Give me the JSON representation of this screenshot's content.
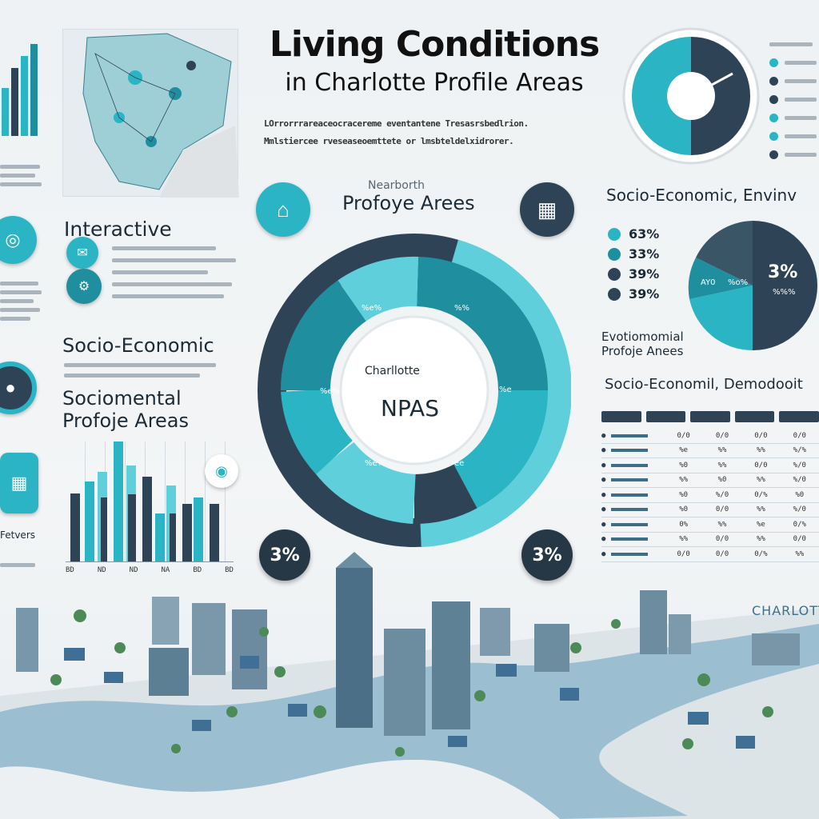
{
  "header": {
    "title": "Living Conditions",
    "subtitle": "in Charlotte Profile Areas",
    "intro_line1": "LOrrorrrareaceocracereme eventantene Tresasrsbedlrion.",
    "intro_line2": "Mmlstiercee rveseaseoemttete or lmsbteldelxidrorer."
  },
  "center": {
    "ring_label": "Profoye Arees",
    "ring_label_top": "Nearborth",
    "center_line1": "Charllotte",
    "center_line2": "NPAS",
    "badge_left": "3%",
    "badge_right": "3%",
    "segment_labels": [
      "%e%",
      "%%",
      "%e",
      "%e%",
      "%e%",
      "ee"
    ]
  },
  "left": {
    "interactive_heading": "Interactive",
    "socio_heading": "Socio-Economic",
    "socio2_heading_1": "Sociomental",
    "socio2_heading_2": "Profoje Areas",
    "side_label": "Fetvers",
    "axis_labels": [
      "BD",
      "ND",
      "ND",
      "NA",
      "BD",
      "BD"
    ]
  },
  "right": {
    "socio_heading": "Socio-Economic, Envinv",
    "legend": [
      "63%",
      "33%",
      "39%",
      "39%"
    ],
    "pie_big_label": "3%",
    "pie_small_label_1": "AY0",
    "pie_small_label_2": "%o%",
    "pie_small_label_3": "%%%",
    "env_heading_1": "Evotiomomial",
    "env_heading_2": "Profoje Anees",
    "demo_heading": "Socio-Economil, Demodooit",
    "table_rows": [
      [
        "0/0",
        "0/0",
        "0/0",
        "0/0"
      ],
      [
        "%e",
        "%%",
        "%%",
        "%/%"
      ],
      [
        "%0",
        "%%",
        "0/0",
        "%/0"
      ],
      [
        "%%",
        "%0",
        "%%",
        "%/0"
      ],
      [
        "%0",
        "%/0",
        "0/%",
        "%0"
      ],
      [
        "%0",
        "0/0",
        "%%",
        "%/0"
      ],
      [
        "0%",
        "%%",
        "%e",
        "0/%"
      ],
      [
        "%%",
        "0/0",
        "%%",
        "0/0"
      ],
      [
        "0/0",
        "0/0",
        "0/%",
        "%%"
      ]
    ]
  },
  "city": {
    "label": "CHARLOTT"
  },
  "colors": {
    "teal": "#2bb4c4",
    "dark": "#2e4456",
    "light_teal": "#5fd0db",
    "mid_teal": "#1f8e9e"
  }
}
